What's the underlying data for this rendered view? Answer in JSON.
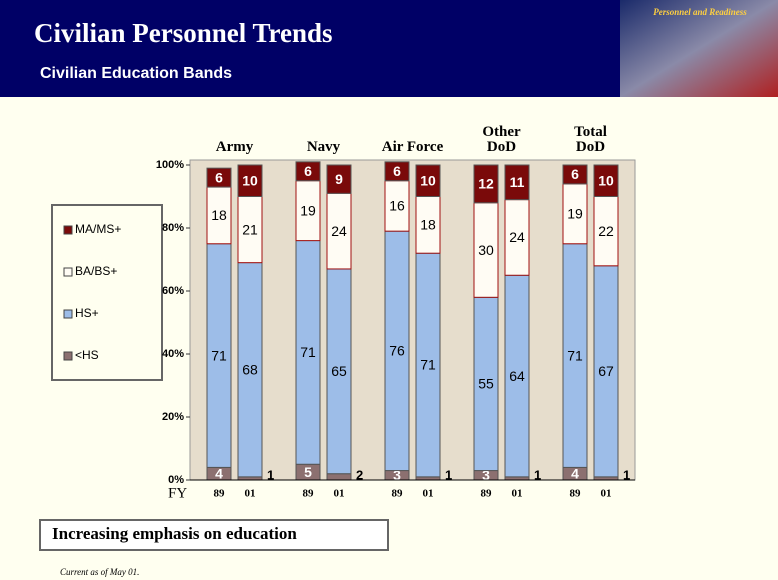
{
  "header": {
    "title": "Civilian Personnel Trends",
    "subtitle": "Civilian Education Bands",
    "logo_text": "Personnel and Readiness"
  },
  "chart_data": {
    "type": "bar",
    "stacked": true,
    "groups": [
      "Army",
      "Navy",
      "Air Force",
      "Other DoD",
      "Total DoD"
    ],
    "categories": [
      "89",
      "01",
      "89",
      "01",
      "89",
      "01",
      "89",
      "01",
      "89",
      "01"
    ],
    "x_label": "FY",
    "ylim": [
      0,
      100
    ],
    "yticks": [
      {
        "value": 0,
        "label": "0%"
      },
      {
        "value": 20,
        "label": "20%"
      },
      {
        "value": 40,
        "label": "40%"
      },
      {
        "value": 60,
        "label": "60%"
      },
      {
        "value": 80,
        "label": "80%"
      },
      {
        "value": 100,
        "label": "100%"
      }
    ],
    "legend": "left",
    "series": [
      {
        "name": "<HS",
        "color": "#8c7070",
        "values": [
          4,
          1,
          5,
          2,
          3,
          1,
          3,
          1,
          4,
          1
        ]
      },
      {
        "name": "HS+",
        "color": "#9dbde8",
        "values": [
          71,
          68,
          71,
          65,
          76,
          71,
          55,
          64,
          71,
          67
        ]
      },
      {
        "name": "BA/BS+",
        "color": "#fffcf4",
        "values": [
          18,
          21,
          19,
          24,
          16,
          18,
          30,
          24,
          19,
          22
        ]
      },
      {
        "name": "MA/MS+",
        "color": "#7a0a0a",
        "values": [
          6,
          10,
          6,
          9,
          6,
          10,
          12,
          11,
          6,
          10
        ]
      }
    ]
  },
  "callout": "Increasing emphasis on education",
  "footnote": "Current as of May 01."
}
